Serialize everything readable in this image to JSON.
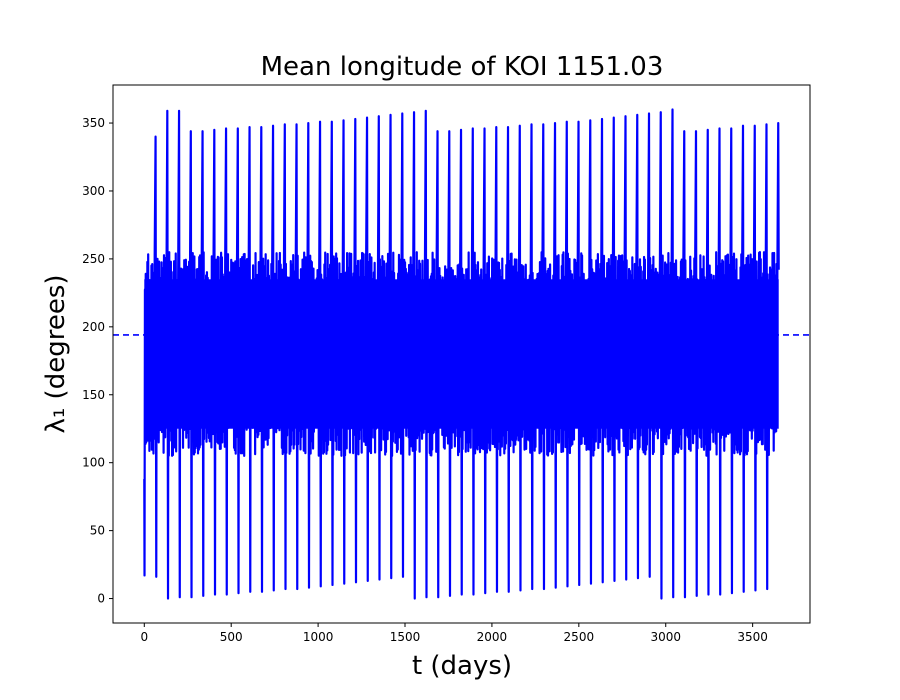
{
  "chart_data": {
    "type": "line",
    "title": "Mean longitude of KOI 1151.03",
    "xlabel": "t (days)",
    "ylabel": "λ₁ (degrees)",
    "xlim": [
      -180,
      3830
    ],
    "ylim": [
      -18,
      378
    ],
    "x_ticks": [
      0,
      500,
      1000,
      1500,
      2000,
      2500,
      3000,
      3500
    ],
    "y_ticks": [
      0,
      50,
      100,
      150,
      200,
      250,
      300,
      350
    ],
    "grid": false,
    "legend": "none",
    "series": [
      {
        "style": "solid",
        "color": "#0000ff",
        "start_value": 88,
        "t_range": [
          0,
          3650
        ],
        "peaks": [
          340,
          359,
          359,
          344,
          344,
          345,
          346,
          346,
          347,
          347,
          348,
          349,
          349,
          350,
          351,
          351,
          352,
          353,
          354,
          355,
          356,
          357,
          358,
          359,
          344,
          344,
          345,
          346,
          346,
          347,
          347,
          348,
          349,
          349,
          350,
          351,
          351,
          352,
          353,
          354,
          355,
          356,
          357,
          358,
          360,
          344,
          344,
          345,
          346,
          346,
          348,
          348,
          349,
          350
        ],
        "troughs": [
          17,
          16,
          0,
          1,
          1,
          2,
          3,
          3,
          4,
          5,
          5,
          6,
          7,
          7,
          8,
          9,
          10,
          11,
          12,
          13,
          14,
          15,
          16,
          0,
          1,
          1,
          2,
          3,
          3,
          4,
          5,
          5,
          6,
          7,
          7,
          8,
          9,
          10,
          11,
          12,
          13,
          14,
          15,
          16,
          0,
          1,
          1,
          2,
          3,
          3,
          4,
          5,
          6,
          7
        ],
        "dense_band": [
          105,
          255
        ],
        "end_value": 242
      },
      {
        "style": "dashed",
        "color": "#0000ff",
        "y": 194
      }
    ]
  }
}
